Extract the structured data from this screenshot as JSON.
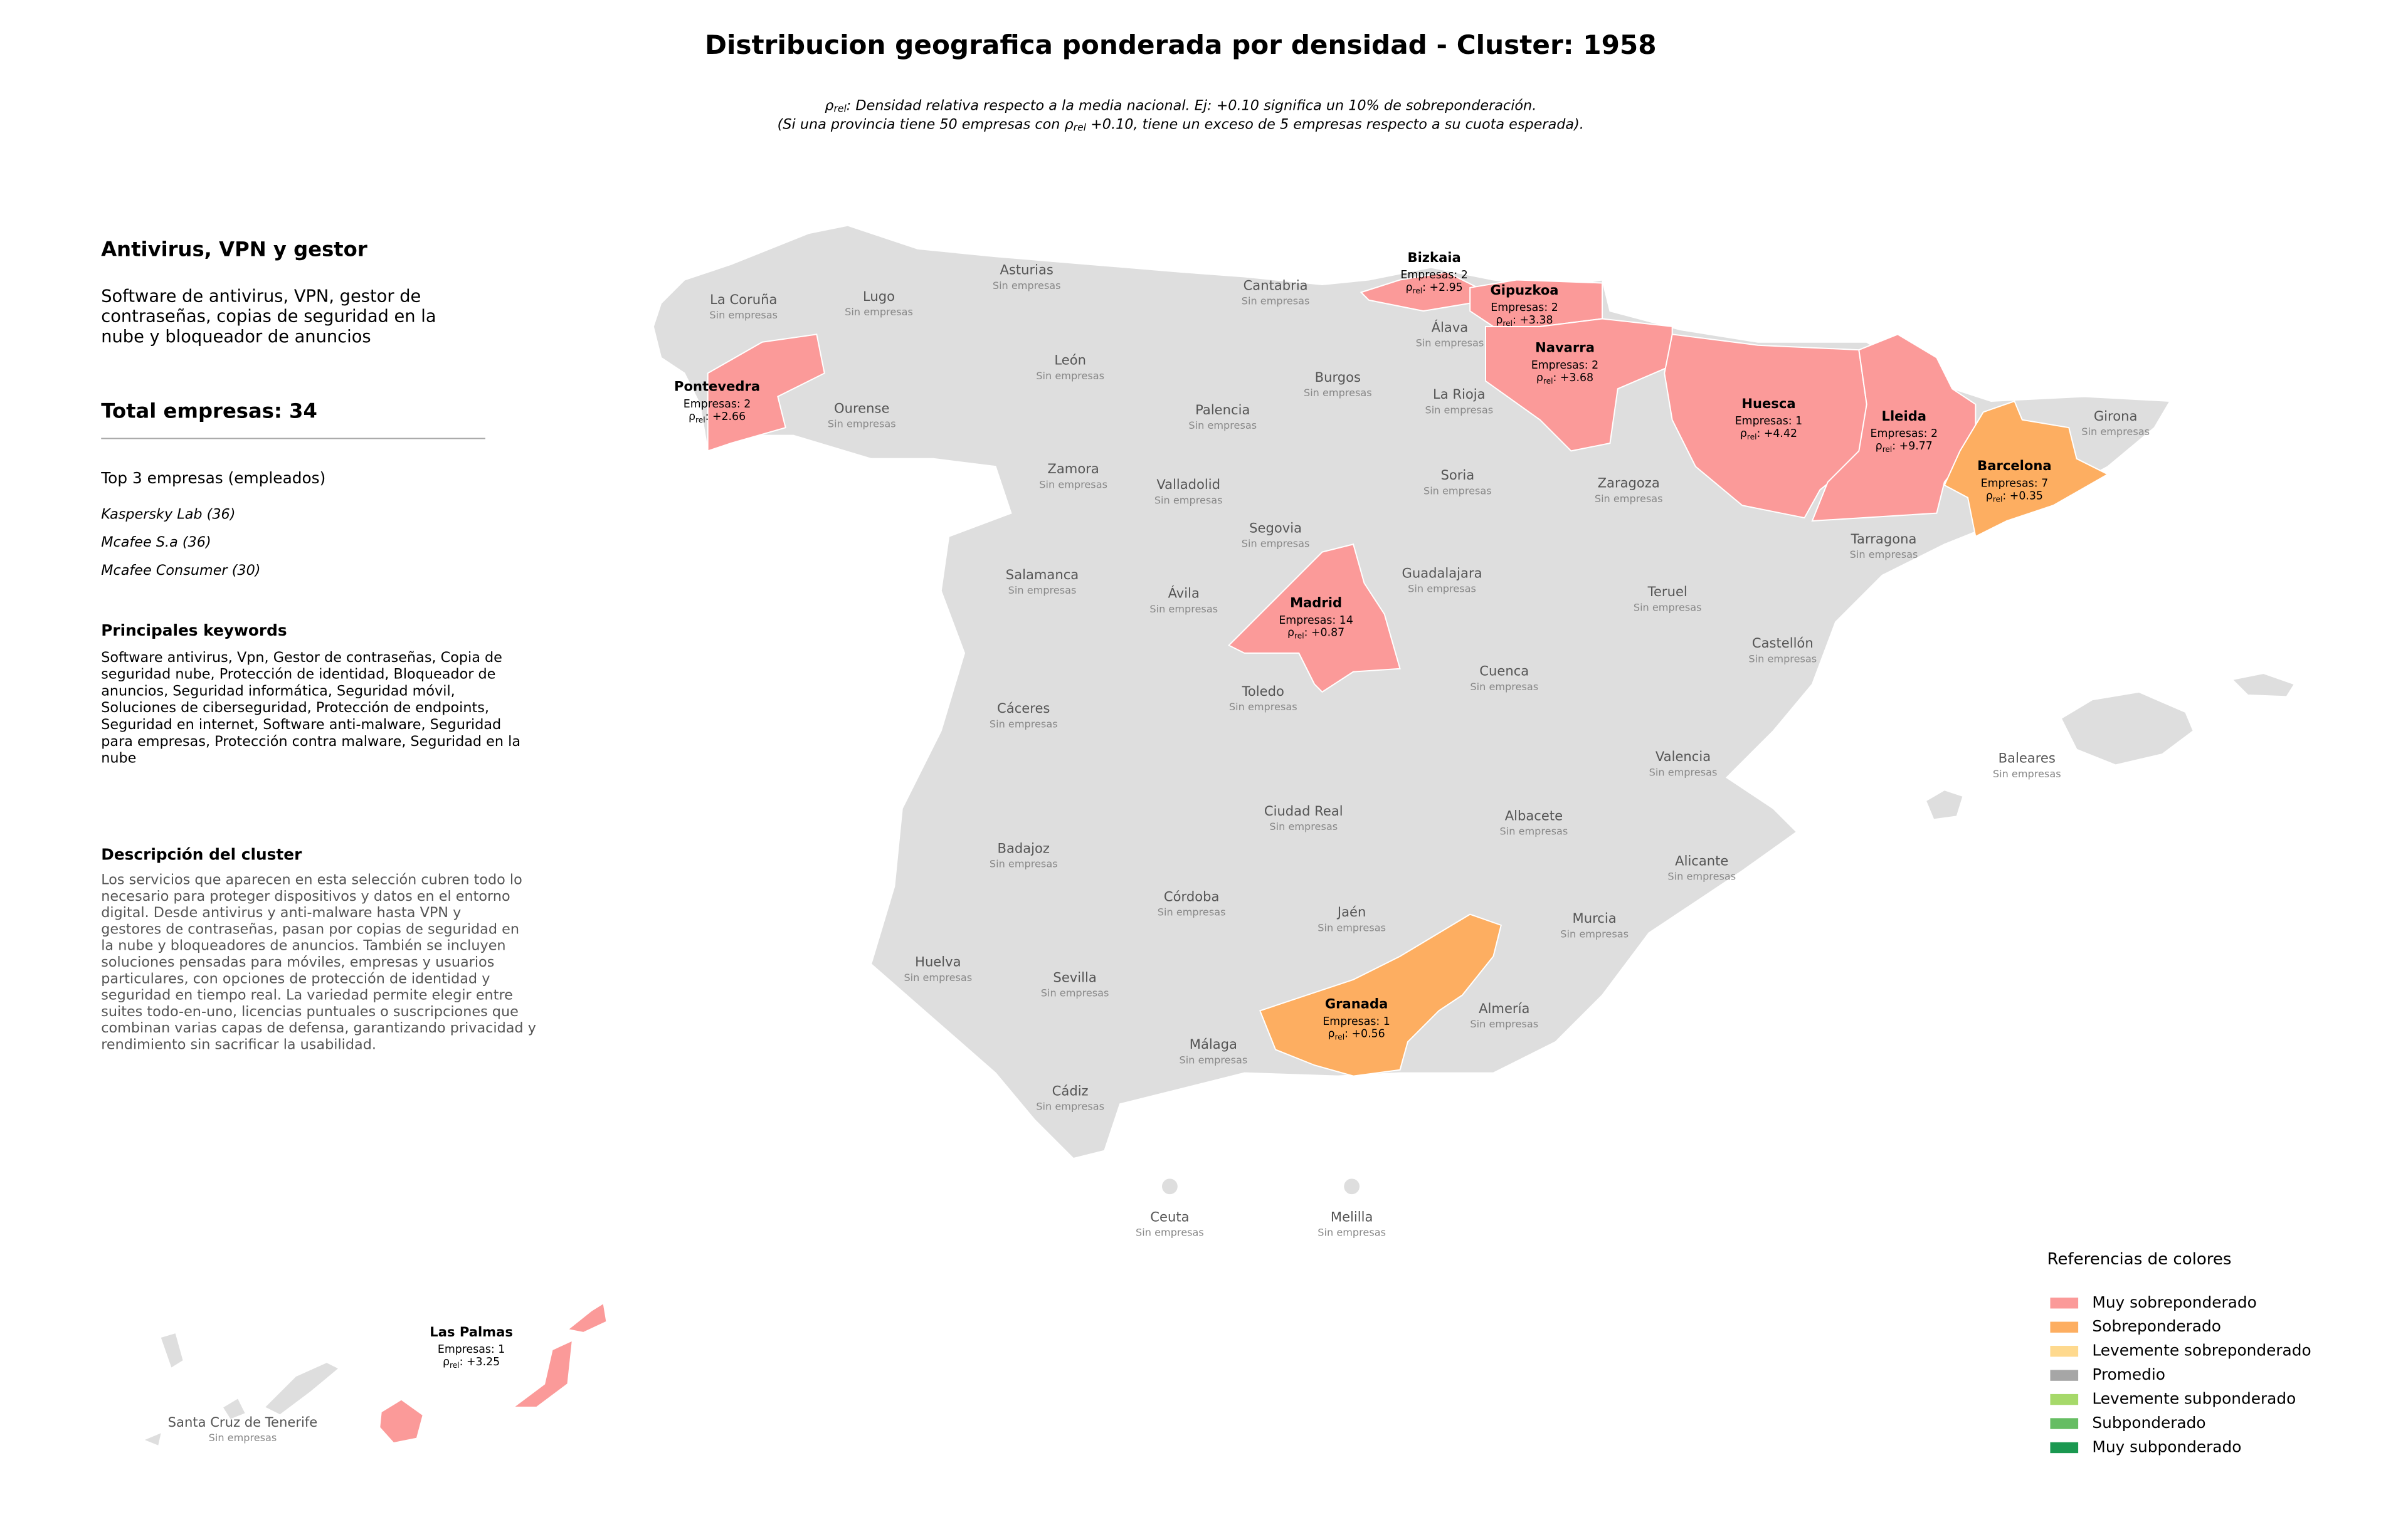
{
  "title": "Distribucion geografica ponderada por densidad - Cluster: 1958",
  "rho_symbol": "ρ",
  "rho_subscript": "rel",
  "subtitle_1": ": Densidad relativa respecto a la media nacional. Ej: +0.10 significa un 10% de sobreponderación.",
  "subtitle_2a": "(Si una provincia tiene 50 empresas con ",
  "subtitle_2b": " +0.10, tiene un exceso de 5 empresas respecto a su cuota esperada).",
  "panel": {
    "heading": "Antivirus, VPN y gestor",
    "summary": [
      "Software de antivirus, VPN, gestor de",
      "contraseñas, copias de seguridad en la",
      "nube y bloqueador de anuncios"
    ],
    "total": "Total empresas: 34",
    "top_title": "Top 3 empresas (empleados)",
    "top": [
      "Kaspersky Lab (36)",
      "Mcafee S.a (36)",
      "Mcafee Consumer (30)"
    ],
    "keywords_title": "Principales keywords",
    "keywords": [
      "Software antivirus, Vpn, Gestor de contraseñas, Copia de",
      "seguridad nube, Protección de identidad, Bloqueador de",
      "anuncios, Seguridad informática, Seguridad móvil,",
      "Soluciones de ciberseguridad, Protección de endpoints,",
      "Seguridad en internet, Software anti-malware, Seguridad",
      "para empresas, Protección contra malware, Seguridad en la",
      "nube"
    ],
    "description_title": "Descripción del cluster",
    "description": [
      "Los servicios que aparecen en esta selección cubren todo lo",
      "necesario para proteger dispositivos y datos en el entorno",
      "digital. Desde antivirus y anti-malware hasta VPN y",
      "gestores de contraseñas, pasan por copias de seguridad en",
      "la nube y bloqueadores de anuncios. También se incluyen",
      "soluciones pensadas para móviles, empresas y usuarios",
      "particulares, con opciones de protección de identidad y",
      "seguridad en tiempo real. La variedad permite elegir entre",
      "suites todo-en-uno, licencias puntuales o suscripciones que",
      "combinan varias capas de defensa, garantizando privacidad y",
      "rendimiento sin sacrificar la usabilidad."
    ]
  },
  "base_color": "#dedede",
  "provinces": [
    {
      "name": "La Coruña",
      "note": "Sin empresas"
    },
    {
      "name": "Lugo",
      "note": "Sin empresas"
    },
    {
      "name": "Asturias",
      "note": "Sin empresas"
    },
    {
      "name": "Cantabria",
      "note": "Sin empresas"
    },
    {
      "name": "Bizkaia",
      "companies": "Empresas: 2",
      "rho": ": +2.95",
      "color": "#fb9a99"
    },
    {
      "name": "Gipuzkoa",
      "companies": "Empresas: 2",
      "rho": ": +3.38",
      "color": "#fb9a99"
    },
    {
      "name": "Álava",
      "note": "Sin empresas"
    },
    {
      "name": "Navarra",
      "companies": "Empresas: 2",
      "rho": ": +3.68",
      "color": "#fb9a99"
    },
    {
      "name": "Pontevedra",
      "companies": "Empresas: 2",
      "rho": ": +2.66",
      "color": "#fb9a99"
    },
    {
      "name": "Ourense",
      "note": "Sin empresas"
    },
    {
      "name": "León",
      "note": "Sin empresas"
    },
    {
      "name": "Palencia",
      "note": "Sin empresas"
    },
    {
      "name": "Burgos",
      "note": "Sin empresas"
    },
    {
      "name": "La Rioja",
      "note": "Sin empresas"
    },
    {
      "name": "Huesca",
      "companies": "Empresas: 1",
      "rho": ": +4.42",
      "color": "#fb9a99"
    },
    {
      "name": "Lleida",
      "companies": "Empresas: 2",
      "rho": ": +9.77",
      "color": "#fb9a99"
    },
    {
      "name": "Girona",
      "note": "Sin empresas"
    },
    {
      "name": "Barcelona",
      "companies": "Empresas: 7",
      "rho": ": +0.35",
      "color": "#fdae61"
    },
    {
      "name": "Zamora",
      "note": "Sin empresas"
    },
    {
      "name": "Valladolid",
      "note": "Sin empresas"
    },
    {
      "name": "Soria",
      "note": "Sin empresas"
    },
    {
      "name": "Zaragoza",
      "note": "Sin empresas"
    },
    {
      "name": "Segovia",
      "note": "Sin empresas"
    },
    {
      "name": "Tarragona",
      "note": "Sin empresas"
    },
    {
      "name": "Salamanca",
      "note": "Sin empresas"
    },
    {
      "name": "Guadalajara",
      "note": "Sin empresas"
    },
    {
      "name": "Teruel",
      "note": "Sin empresas"
    },
    {
      "name": "Ávila",
      "note": "Sin empresas"
    },
    {
      "name": "Madrid",
      "companies": "Empresas: 14",
      "rho": ": +0.87",
      "color": "#fb9a99"
    },
    {
      "name": "Castellón",
      "note": "Sin empresas"
    },
    {
      "name": "Cuenca",
      "note": "Sin empresas"
    },
    {
      "name": "Toledo",
      "note": "Sin empresas"
    },
    {
      "name": "Cáceres",
      "note": "Sin empresas"
    },
    {
      "name": "Baleares",
      "note": "Sin empresas"
    },
    {
      "name": "Valencia",
      "note": "Sin empresas"
    },
    {
      "name": "Ciudad Real",
      "note": "Sin empresas"
    },
    {
      "name": "Albacete",
      "note": "Sin empresas"
    },
    {
      "name": "Badajoz",
      "note": "Sin empresas"
    },
    {
      "name": "Alicante",
      "note": "Sin empresas"
    },
    {
      "name": "Córdoba",
      "note": "Sin empresas"
    },
    {
      "name": "Jaén",
      "note": "Sin empresas"
    },
    {
      "name": "Murcia",
      "note": "Sin empresas"
    },
    {
      "name": "Huelva",
      "note": "Sin empresas"
    },
    {
      "name": "Sevilla",
      "note": "Sin empresas"
    },
    {
      "name": "Granada",
      "companies": "Empresas: 1",
      "rho": ": +0.56",
      "color": "#fdae61"
    },
    {
      "name": "Almería",
      "note": "Sin empresas"
    },
    {
      "name": "Málaga",
      "note": "Sin empresas"
    },
    {
      "name": "Cádiz",
      "note": "Sin empresas"
    },
    {
      "name": "Ceuta",
      "note": "Sin empresas"
    },
    {
      "name": "Melilla",
      "note": "Sin empresas"
    },
    {
      "name": "Las Palmas",
      "companies": "Empresas: 1",
      "rho": ": +3.25",
      "color": "#fb9a99"
    },
    {
      "name": "Santa Cruz de Tenerife",
      "note": "Sin empresas"
    }
  ],
  "legend": {
    "title": "Referencias de colores",
    "items": [
      {
        "name": "Muy sobreponderado",
        "color": "#fb9a99"
      },
      {
        "name": "Sobreponderado",
        "color": "#fdae61"
      },
      {
        "name": "Levemente sobreponderado",
        "color": "#fed98e"
      },
      {
        "name": "Promedio",
        "color": "#a6a6a6"
      },
      {
        "name": "Levemente subponderado",
        "color": "#a6d96a"
      },
      {
        "name": "Subponderado",
        "color": "#66bd63"
      },
      {
        "name": "Muy subponderado",
        "color": "#1a9850"
      }
    ]
  }
}
